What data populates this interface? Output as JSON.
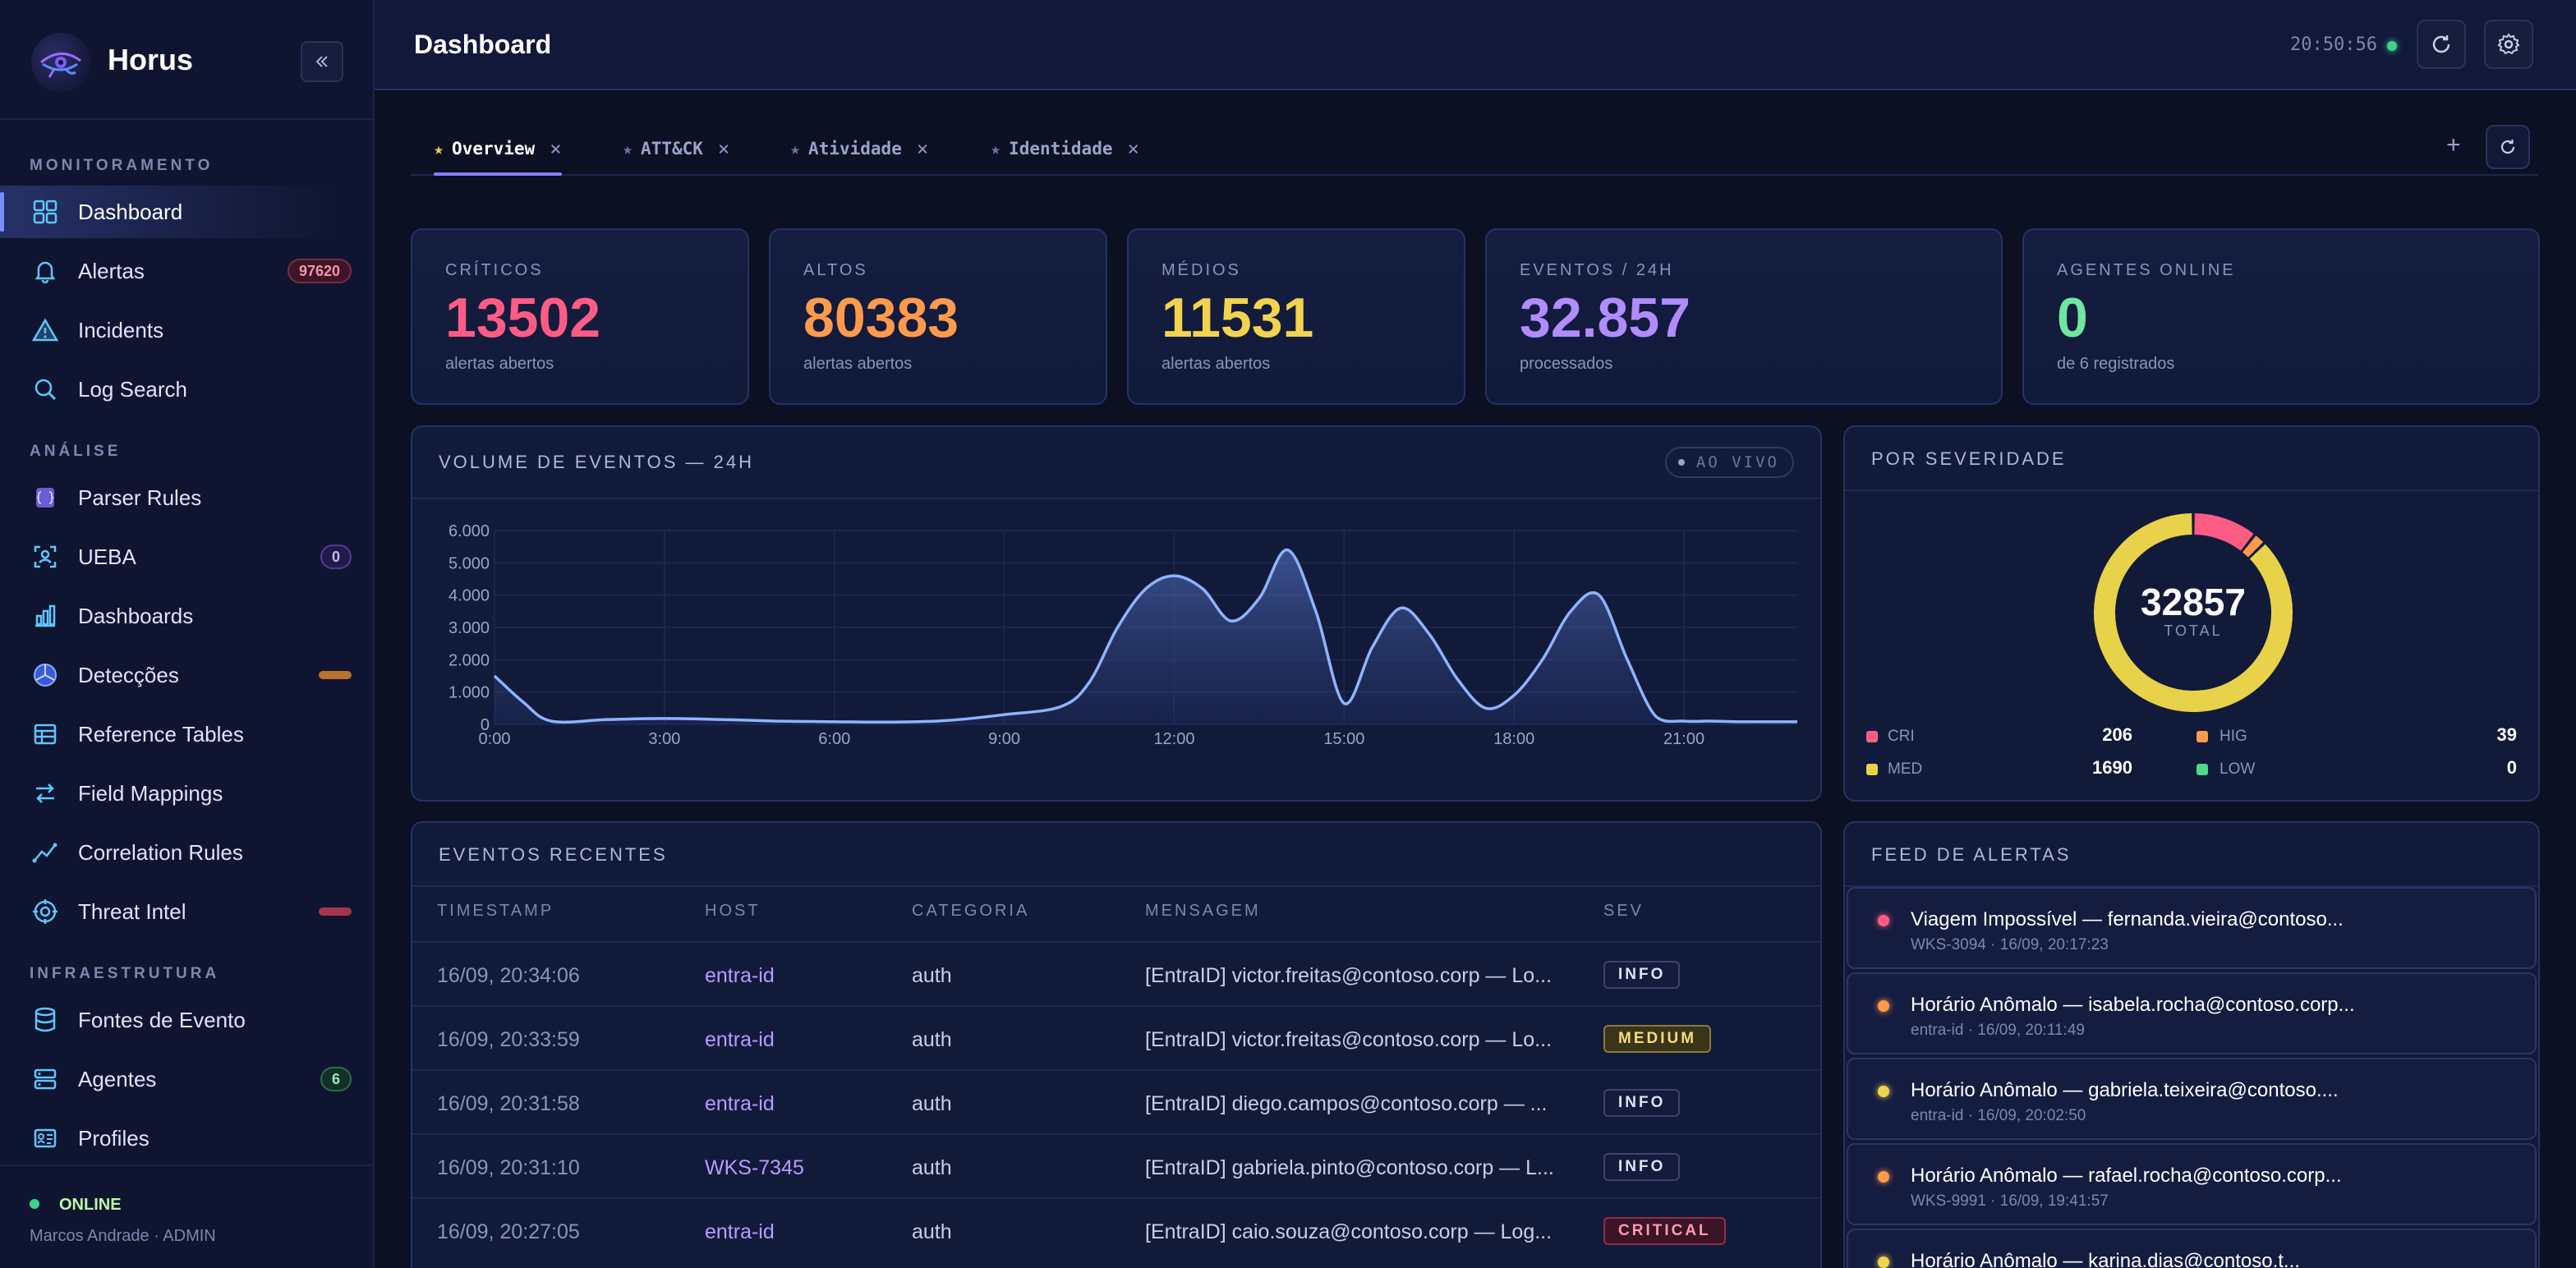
{
  "brand": {
    "name": "Horus"
  },
  "sidebar": {
    "sections": [
      {
        "title": "MONITORAMENTO"
      },
      {
        "title": "ANÁLISE"
      },
      {
        "title": "INFRAESTRUTURA"
      }
    ],
    "items": [
      {
        "label": "Dashboard",
        "icon": "grid-icon"
      },
      {
        "label": "Alertas",
        "icon": "bell-icon",
        "badge": "97620"
      },
      {
        "label": "Incidents",
        "icon": "warning-icon"
      },
      {
        "label": "Log Search",
        "icon": "search-icon"
      },
      {
        "label": "Parser Rules",
        "icon": "braces-icon"
      },
      {
        "label": "UEBA",
        "icon": "user-scan-icon",
        "badge": "0"
      },
      {
        "label": "Dashboards",
        "icon": "bar-chart-icon"
      },
      {
        "label": "Detecções",
        "icon": "radar-icon"
      },
      {
        "label": "Reference Tables",
        "icon": "table-icon"
      },
      {
        "label": "Field Mappings",
        "icon": "arrows-icon"
      },
      {
        "label": "Correlation Rules",
        "icon": "trend-icon"
      },
      {
        "label": "Threat Intel",
        "icon": "target-icon"
      },
      {
        "label": "Fontes de Evento",
        "icon": "database-icon"
      },
      {
        "label": "Agentes",
        "icon": "server-icon",
        "badge": "6"
      },
      {
        "label": "Profiles",
        "icon": "id-card-icon"
      }
    ],
    "footer": {
      "status": "ONLINE",
      "user": "Marcos Andrade · ADMIN"
    }
  },
  "header": {
    "title": "Dashboard",
    "clock": "20:50:56"
  },
  "tabs": [
    {
      "label": "Overview"
    },
    {
      "label": "ATT&CK"
    },
    {
      "label": "Atividade"
    },
    {
      "label": "Identidade"
    }
  ],
  "kpis": [
    {
      "label": "CRÍTICOS",
      "value": "13502",
      "sub": "alertas abertos",
      "color": "#ff5c85"
    },
    {
      "label": "ALTOS",
      "value": "80383",
      "sub": "alertas abertos",
      "color": "#ff9a4d"
    },
    {
      "label": "MÉDIOS",
      "value": "11531",
      "sub": "alertas abertos",
      "color": "#f2d34f"
    },
    {
      "label": "EVENTOS / 24H",
      "value": "32.857",
      "sub": "processados",
      "color": "#b18cff"
    },
    {
      "label": "AGENTES ONLINE",
      "value": "0",
      "sub": "de 6 registrados",
      "color": "#6ee7a0"
    }
  ],
  "volume": {
    "title": "VOLUME DE EVENTOS — 24H",
    "live": "AO VIVO"
  },
  "chart_data": {
    "type": "area",
    "title": "VOLUME DE EVENTOS — 24H",
    "xlabel": "",
    "ylabel": "",
    "xlim": [
      0,
      23
    ],
    "ylim": [
      0,
      6000
    ],
    "x_ticks": [
      "0:00",
      "3:00",
      "6:00",
      "9:00",
      "12:00",
      "15:00",
      "18:00",
      "21:00"
    ],
    "y_ticks": [
      "0",
      "1.000",
      "2.000",
      "3.000",
      "4.000",
      "5.000",
      "6.000"
    ],
    "x": [
      0,
      0.5,
      1,
      2,
      3,
      4,
      5,
      6,
      7,
      8,
      9,
      10,
      10.5,
      11,
      11.5,
      12,
      12.5,
      13,
      13.5,
      14,
      14.5,
      15,
      15.5,
      16,
      16.5,
      17,
      17.5,
      18,
      18.5,
      19,
      19.5,
      20,
      20.5,
      21,
      21.5,
      22,
      22.5,
      23
    ],
    "values": [
      1500,
      700,
      100,
      150,
      180,
      150,
      100,
      80,
      70,
      120,
      300,
      550,
      1300,
      3000,
      4200,
      4600,
      4200,
      3200,
      3900,
      5400,
      3500,
      650,
      2400,
      3600,
      2800,
      1400,
      500,
      900,
      2000,
      3500,
      4000,
      2000,
      250,
      100,
      100,
      80,
      80,
      80
    ],
    "line_color": "#8fb3ff",
    "grid": true
  },
  "severity": {
    "title": "POR SEVERIDADE",
    "total": "32857",
    "total_label": "TOTAL",
    "legend": [
      {
        "name": "CRI",
        "value": "206",
        "color": "#ff5c85"
      },
      {
        "name": "HIG",
        "value": "39",
        "color": "#ff9a4d"
      },
      {
        "name": "MED",
        "value": "1690",
        "color": "#e8d24a"
      },
      {
        "name": "LOW",
        "value": "0",
        "color": "#4cd98a"
      }
    ]
  },
  "events": {
    "title": "EVENTOS RECENTES",
    "columns": [
      "TIMESTAMP",
      "HOST",
      "CATEGORIA",
      "MENSAGEM",
      "SEV"
    ],
    "rows": [
      {
        "ts": "16/09, 20:34:06",
        "host": "entra-id",
        "cat": "auth",
        "msg": "[EntraID] victor.freitas@contoso.corp — Lo...",
        "sev": "INFO"
      },
      {
        "ts": "16/09, 20:33:59",
        "host": "entra-id",
        "cat": "auth",
        "msg": "[EntraID] victor.freitas@contoso.corp — Lo...",
        "sev": "MEDIUM"
      },
      {
        "ts": "16/09, 20:31:58",
        "host": "entra-id",
        "cat": "auth",
        "msg": "[EntraID] diego.campos@contoso.corp — ...",
        "sev": "INFO"
      },
      {
        "ts": "16/09, 20:31:10",
        "host": "WKS-7345",
        "cat": "auth",
        "msg": "[EntraID] gabriela.pinto@contoso.corp — L...",
        "sev": "INFO"
      },
      {
        "ts": "16/09, 20:27:05",
        "host": "entra-id",
        "cat": "auth",
        "msg": "[EntraID] caio.souza@contoso.corp — Log...",
        "sev": "CRITICAL"
      }
    ]
  },
  "feed": {
    "title": "FEED DE ALERTAS",
    "items": [
      {
        "title": "Viagem Impossível — fernanda.vieira@contoso...",
        "meta": "WKS-3094 · 16/09, 20:17:23",
        "color": "#ff5c85"
      },
      {
        "title": "Horário Anômalo — isabela.rocha@contoso.corp...",
        "meta": "entra-id · 16/09, 20:11:49",
        "color": "#ff9a4d"
      },
      {
        "title": "Horário Anômalo — gabriela.teixeira@contoso....",
        "meta": "entra-id · 16/09, 20:02:50",
        "color": "#f2d34f"
      },
      {
        "title": "Horário Anômalo — rafael.rocha@contoso.corp...",
        "meta": "WKS-9991 · 16/09, 19:41:57",
        "color": "#ff9a4d"
      },
      {
        "title": "Horário Anômalo — karina.dias@contoso.t...",
        "meta": "",
        "color": "#f2d34f"
      }
    ]
  }
}
